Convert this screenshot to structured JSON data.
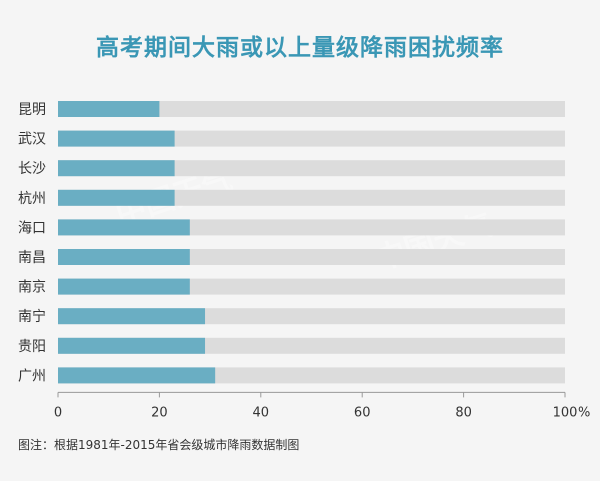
{
  "title": "高考期间大雨或以上量级降雨困扰频率",
  "note": "图注：根据1981年-2015年省会级城市降雨数据制图",
  "watermark": "中国天气",
  "colors": {
    "bar": "#6aaec3",
    "track": "#dcdcdc",
    "title": "#3a97b5",
    "axis": "#999999"
  },
  "chart_data": {
    "type": "bar",
    "orientation": "horizontal",
    "categories": [
      "昆明",
      "武汉",
      "长沙",
      "杭州",
      "海口",
      "南昌",
      "南京",
      "南宁",
      "贵阳",
      "广州"
    ],
    "values": [
      20,
      23,
      23,
      23,
      26,
      26,
      26,
      29,
      29,
      31
    ],
    "xlim": [
      0,
      100
    ],
    "xticks": [
      0,
      20,
      40,
      60,
      80,
      100
    ],
    "xunit": "%",
    "grid": false,
    "legend": "none"
  }
}
